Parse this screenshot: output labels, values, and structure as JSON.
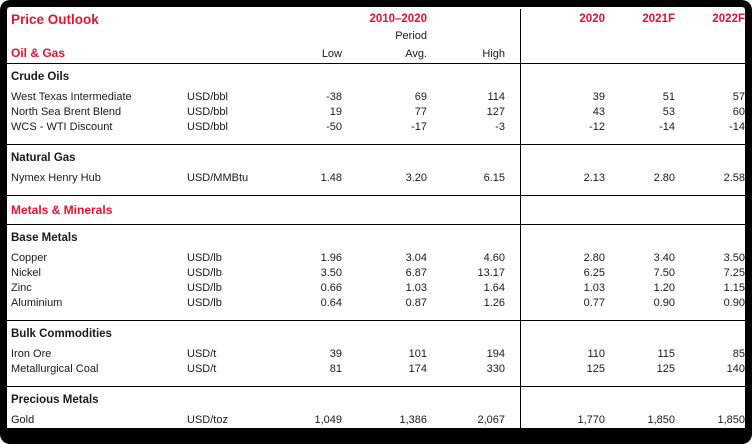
{
  "title": "Price Outlook",
  "colors": {
    "accent_red": "#E8112D",
    "text_black": "#1A1A1A",
    "border_black": "#000000"
  },
  "header": {
    "period_group": "2010–2020",
    "period_label": "Period",
    "sub": {
      "low": "Low",
      "avg": "Avg.",
      "high": "High"
    },
    "years": {
      "y2020": "2020",
      "y2021": "2021F",
      "y2022": "2022F"
    }
  },
  "chart_data": {
    "type": "table",
    "title": "Price Outlook",
    "columns": [
      "Low",
      "Avg.",
      "High",
      "2020",
      "2021F",
      "2022F"
    ],
    "period_group_label": "2010–2020 Period",
    "sections": [
      {
        "label": "Oil & Gas",
        "subsections": [
          {
            "label": "Crude Oils",
            "rows": [
              {
                "name": "West Texas Intermediate",
                "unit": "USD/bbl",
                "values": [
                  "-38",
                  "69",
                  "114",
                  "39",
                  "51",
                  "57"
                ]
              },
              {
                "name": "North Sea Brent Blend",
                "unit": "USD/bbl",
                "values": [
                  "19",
                  "77",
                  "127",
                  "43",
                  "53",
                  "60"
                ]
              },
              {
                "name": "WCS - WTI Discount",
                "unit": "USD/bbl",
                "values": [
                  "-50",
                  "-17",
                  "-3",
                  "-12",
                  "-14",
                  "-14"
                ]
              }
            ]
          },
          {
            "label": "Natural Gas",
            "rows": [
              {
                "name": "Nymex Henry Hub",
                "unit": "USD/MMBtu",
                "values": [
                  "1.48",
                  "3.20",
                  "6.15",
                  "2.13",
                  "2.80",
                  "2.58"
                ]
              }
            ]
          }
        ]
      },
      {
        "label": "Metals & Minerals",
        "subsections": [
          {
            "label": "Base Metals",
            "rows": [
              {
                "name": "Copper",
                "unit": "USD/lb",
                "values": [
                  "1.96",
                  "3.04",
                  "4.60",
                  "2.80",
                  "3.40",
                  "3.50"
                ]
              },
              {
                "name": "Nickel",
                "unit": "USD/lb",
                "values": [
                  "3.50",
                  "6.87",
                  "13.17",
                  "6.25",
                  "7.50",
                  "7.25"
                ]
              },
              {
                "name": "Zinc",
                "unit": "USD/lb",
                "values": [
                  "0.66",
                  "1.03",
                  "1.64",
                  "1.03",
                  "1.20",
                  "1.15"
                ]
              },
              {
                "name": "Aluminium",
                "unit": "USD/lb",
                "values": [
                  "0.64",
                  "0.87",
                  "1.26",
                  "0.77",
                  "0.90",
                  "0.90"
                ]
              }
            ]
          },
          {
            "label": "Bulk Commodities",
            "rows": [
              {
                "name": "Iron Ore",
                "unit": "USD/t",
                "values": [
                  "39",
                  "101",
                  "194",
                  "110",
                  "115",
                  "85"
                ]
              },
              {
                "name": "Metallurgical Coal",
                "unit": "USD/t",
                "values": [
                  "81",
                  "174",
                  "330",
                  "125",
                  "125",
                  "140"
                ]
              }
            ]
          },
          {
            "label": "Precious Metals",
            "rows": [
              {
                "name": "Gold",
                "unit": "USD/toz",
                "values": [
                  "1,049",
                  "1,386",
                  "2,067",
                  "1,770",
                  "1,850",
                  "1,850"
                ]
              }
            ]
          }
        ]
      }
    ]
  }
}
